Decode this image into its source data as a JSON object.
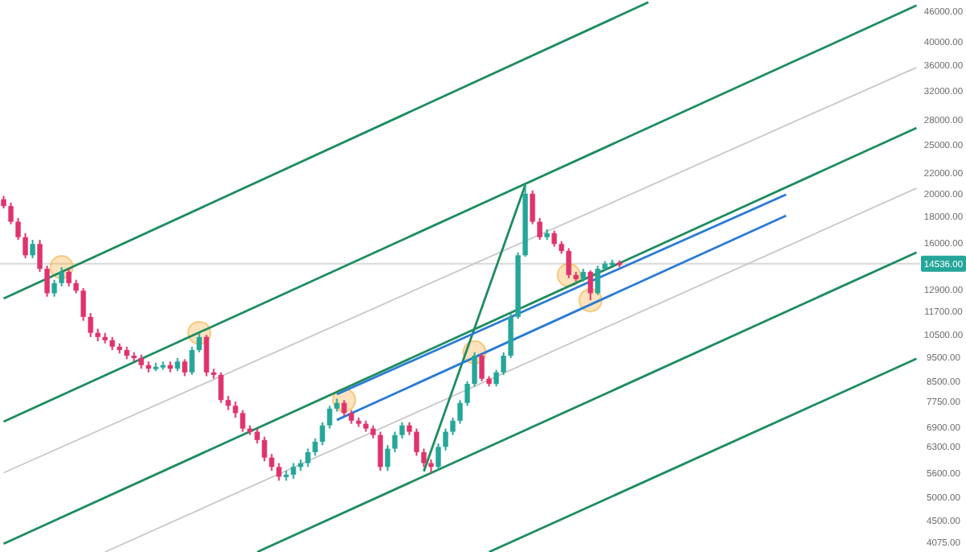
{
  "chart_data": {
    "type": "candlestick",
    "categories": [
      null,
      null,
      null,
      null,
      null,
      null,
      null,
      null,
      null,
      null,
      null,
      null,
      null,
      null,
      null,
      null,
      null,
      null,
      null,
      null,
      null,
      null,
      null,
      null,
      null,
      null,
      null,
      null,
      null,
      null,
      null,
      null,
      null,
      null,
      null,
      null,
      null,
      null,
      null,
      null,
      null,
      null,
      null,
      null,
      null,
      null,
      null,
      null,
      null,
      null,
      null,
      null,
      null,
      null,
      null,
      null,
      null,
      null,
      null,
      null,
      null,
      null,
      null,
      null,
      null,
      null,
      null,
      null,
      null,
      null,
      null,
      null,
      null,
      null,
      null,
      null,
      null,
      null,
      null,
      null,
      null,
      null,
      null,
      null,
      null,
      null,
      null,
      null,
      null,
      null,
      null,
      null,
      null,
      null,
      null,
      null,
      null,
      null,
      null,
      null,
      null,
      null,
      null,
      null,
      null,
      null,
      null,
      null,
      null,
      null,
      null,
      null,
      null,
      null,
      null,
      null,
      null,
      null,
      null,
      null,
      null,
      null,
      null,
      null,
      null,
      null,
      null
    ],
    "ohlc": [
      [
        19500,
        19800,
        18700,
        18900
      ],
      [
        18900,
        19200,
        17400,
        17600
      ],
      [
        17600,
        17900,
        16200,
        16400
      ],
      [
        16400,
        16700,
        14900,
        15100
      ],
      [
        15100,
        16200,
        14900,
        15900
      ],
      [
        15900,
        16200,
        14000,
        14200
      ],
      [
        14200,
        14400,
        12500,
        12700
      ],
      [
        12700,
        13500,
        12500,
        13300
      ],
      [
        13300,
        14300,
        13100,
        14000
      ],
      [
        14000,
        14200,
        13100,
        13300
      ],
      [
        13300,
        13500,
        12700,
        12850
      ],
      [
        12850,
        13000,
        11200,
        11400
      ],
      [
        11400,
        11600,
        10400,
        10600
      ],
      [
        10600,
        10800,
        10200,
        10400
      ],
      [
        10400,
        10600,
        10100,
        10250
      ],
      [
        10250,
        10400,
        9800,
        9950
      ],
      [
        9950,
        10100,
        9650,
        9800
      ],
      [
        9800,
        9950,
        9400,
        9550
      ],
      [
        9550,
        9700,
        9300,
        9450
      ],
      [
        9450,
        9600,
        9000,
        9150
      ],
      [
        9150,
        9300,
        8850,
        9000
      ],
      [
        9000,
        9250,
        8900,
        9080
      ],
      [
        9080,
        9300,
        8950,
        9150
      ],
      [
        9150,
        9300,
        8850,
        9000
      ],
      [
        9000,
        9450,
        8900,
        9300
      ],
      [
        9300,
        9400,
        8700,
        8850
      ],
      [
        8850,
        9950,
        8750,
        9800
      ],
      [
        9800,
        10600,
        9700,
        10400
      ],
      [
        10400,
        10500,
        8700,
        8850
      ],
      [
        8850,
        9000,
        8600,
        8750
      ],
      [
        8750,
        8850,
        7700,
        7800
      ],
      [
        7800,
        7950,
        7450,
        7600
      ],
      [
        7600,
        7750,
        7200,
        7350
      ],
      [
        7350,
        7450,
        6750,
        6850
      ],
      [
        6850,
        6950,
        6650,
        6750
      ],
      [
        6750,
        6850,
        6400,
        6500
      ],
      [
        6500,
        6600,
        5900,
        6000
      ],
      [
        6000,
        6100,
        5650,
        5750
      ],
      [
        5750,
        5850,
        5400,
        5500
      ],
      [
        5500,
        5650,
        5400,
        5550
      ],
      [
        5550,
        5850,
        5450,
        5750
      ],
      [
        5750,
        5950,
        5650,
        5850
      ],
      [
        5850,
        6250,
        5750,
        6150
      ],
      [
        6150,
        6550,
        6050,
        6450
      ],
      [
        6450,
        7050,
        6350,
        6950
      ],
      [
        6950,
        7600,
        6850,
        7500
      ],
      [
        7500,
        7850,
        7400,
        7700
      ],
      [
        7700,
        7800,
        7250,
        7350
      ],
      [
        7350,
        7450,
        7000,
        7100
      ],
      [
        7100,
        7200,
        6900,
        7000
      ],
      [
        7000,
        7100,
        6750,
        6850
      ],
      [
        6850,
        6950,
        6550,
        6650
      ],
      [
        6650,
        6750,
        5650,
        5750
      ],
      [
        5750,
        6350,
        5650,
        6250
      ],
      [
        6250,
        6750,
        6150,
        6650
      ],
      [
        6650,
        7050,
        6550,
        6950
      ],
      [
        6950,
        7050,
        6650,
        6750
      ],
      [
        6750,
        6850,
        6050,
        6150
      ],
      [
        6150,
        6250,
        5750,
        5850
      ],
      [
        5850,
        5950,
        5600,
        5750
      ],
      [
        5750,
        6400,
        5650,
        6300
      ],
      [
        6300,
        6850,
        6200,
        6750
      ],
      [
        6750,
        7200,
        6650,
        7100
      ],
      [
        7100,
        7800,
        7000,
        7700
      ],
      [
        7700,
        8500,
        7600,
        8400
      ],
      [
        8400,
        9700,
        8300,
        9550
      ],
      [
        9550,
        9650,
        8500,
        8600
      ],
      [
        8600,
        8700,
        8300,
        8400
      ],
      [
        8400,
        8950,
        8300,
        8850
      ],
      [
        8850,
        9700,
        8750,
        9550
      ],
      [
        9550,
        11600,
        9450,
        11400
      ],
      [
        11400,
        15300,
        11300,
        15100
      ],
      [
        15100,
        20800,
        15000,
        20000
      ],
      [
        20000,
        20300,
        17400,
        17600
      ],
      [
        17600,
        17900,
        16200,
        16400
      ],
      [
        16400,
        17000,
        16200,
        16700
      ],
      [
        16700,
        16900,
        15700,
        15900
      ],
      [
        15900,
        16100,
        15200,
        15400
      ],
      [
        15400,
        15600,
        13600,
        13800
      ],
      [
        13800,
        14000,
        13400,
        13550
      ],
      [
        13550,
        14200,
        13400,
        14000
      ],
      [
        14000,
        14100,
        12300,
        12700
      ],
      [
        12700,
        14400,
        12600,
        14200
      ],
      [
        14200,
        14700,
        14100,
        14536
      ],
      [
        14536,
        14800,
        14400,
        14600
      ],
      [
        14600,
        14750,
        14300,
        14450
      ],
      null,
      null,
      null,
      null,
      null,
      null,
      null,
      null,
      null,
      null,
      null,
      null,
      null,
      null,
      null,
      null,
      null,
      null,
      null,
      null,
      null,
      null,
      null,
      null,
      null,
      null,
      null,
      null,
      null,
      null,
      null,
      null,
      null,
      null,
      null,
      null,
      null,
      null,
      null,
      null,
      null
    ],
    "colors": [
      "#e0336b",
      "#e0336b",
      "#e0336b",
      "#e0336b",
      "#26a69a",
      "#e0336b",
      "#e0336b",
      "#26a69a",
      "#26a69a",
      "#e0336b",
      "#e0336b",
      "#e0336b",
      "#e0336b",
      "#e0336b",
      "#e0336b",
      "#e0336b",
      "#e0336b",
      "#e0336b",
      "#e0336b",
      "#e0336b",
      "#e0336b",
      "#26a69a",
      "#26a69a",
      "#e0336b",
      "#26a69a",
      "#e0336b",
      "#26a69a",
      "#26a69a",
      "#e0336b",
      "#e0336b",
      "#e0336b",
      "#e0336b",
      "#e0336b",
      "#e0336b",
      "#e0336b",
      "#e0336b",
      "#e0336b",
      "#e0336b",
      "#e0336b",
      "#26a69a",
      "#26a69a",
      "#26a69a",
      "#26a69a",
      "#26a69a",
      "#26a69a",
      "#26a69a",
      "#26a69a",
      "#e0336b",
      "#e0336b",
      "#e0336b",
      "#e0336b",
      "#e0336b",
      "#e0336b",
      "#26a69a",
      "#26a69a",
      "#26a69a",
      "#e0336b",
      "#e0336b",
      "#e0336b",
      "#e0336b",
      "#26a69a",
      "#26a69a",
      "#26a69a",
      "#26a69a",
      "#26a69a",
      "#26a69a",
      "#e0336b",
      "#e0336b",
      "#26a69a",
      "#26a69a",
      "#26a69a",
      "#26a69a",
      "#26a69a",
      "#e0336b",
      "#e0336b",
      "#26a69a",
      "#e0336b",
      "#e0336b",
      "#e0336b",
      "#e0336b",
      "#26a69a",
      "#e0336b",
      "#26a69a",
      "#26a69a",
      "#26a69a",
      "#e0336b",
      null,
      null,
      null,
      null,
      null,
      null,
      null,
      null,
      null,
      null,
      null,
      null,
      null,
      null,
      null,
      null,
      null,
      null,
      null,
      null,
      null,
      null,
      null,
      null,
      null,
      null,
      null,
      null,
      null,
      null,
      null,
      null,
      null,
      null,
      null,
      null,
      null,
      null,
      null,
      null,
      null
    ],
    "series": [
      {
        "type": "line",
        "color": "#1e8c5f",
        "values": [
          12400,
          null,
          null,
          null,
          null,
          null,
          null,
          null,
          null,
          null,
          null,
          null,
          null,
          null,
          null,
          null,
          null,
          null,
          null,
          null,
          null,
          null,
          null,
          null,
          null,
          null,
          null,
          null,
          null,
          null,
          null,
          null,
          null,
          null,
          null,
          null,
          null,
          null,
          null,
          null,
          null,
          null,
          null,
          null,
          null,
          null,
          null,
          null,
          null,
          null,
          null,
          null,
          null,
          null,
          null,
          null,
          null,
          null,
          null,
          null,
          null,
          null,
          null,
          null,
          null,
          null,
          null,
          null,
          null,
          null,
          null,
          null,
          null,
          null,
          null,
          null,
          null,
          null,
          null,
          null,
          null,
          null,
          null,
          null,
          null,
          null,
          null,
          null,
          null,
          47900,
          null,
          null,
          null,
          null,
          null,
          null,
          null,
          null,
          null,
          null,
          null,
          null,
          null,
          null,
          null,
          null,
          null,
          null,
          null,
          null,
          null,
          null,
          null,
          null,
          null,
          null,
          null,
          null,
          null,
          null,
          null,
          null,
          null,
          null,
          null,
          null,
          null
        ]
      },
      {
        "type": "line",
        "color": "#1e8c5f",
        "values": [
          7070,
          null,
          null,
          null,
          null,
          null,
          null,
          null,
          null,
          null,
          null,
          null,
          null,
          null,
          null,
          null,
          null,
          null,
          null,
          null,
          null,
          null,
          null,
          null,
          null,
          null,
          null,
          null,
          null,
          null,
          null,
          null,
          null,
          null,
          null,
          null,
          null,
          null,
          null,
          null,
          null,
          null,
          null,
          null,
          null,
          null,
          null,
          null,
          null,
          null,
          null,
          null,
          null,
          null,
          null,
          null,
          null,
          null,
          null,
          null,
          null,
          null,
          null,
          null,
          null,
          null,
          null,
          null,
          null,
          null,
          null,
          null,
          null,
          null,
          null,
          null,
          null,
          null,
          null,
          null,
          null,
          null,
          null,
          null,
          null,
          null,
          null,
          null,
          null,
          null,
          null,
          null,
          null,
          null,
          null,
          null,
          null,
          null,
          null,
          null,
          null,
          null,
          null,
          null,
          null,
          null,
          null,
          null,
          null,
          null,
          null,
          null,
          null,
          null,
          null,
          null,
          null,
          null,
          null,
          null,
          null,
          null,
          null,
          null,
          null,
          null,
          47200
        ]
      },
      {
        "type": "line",
        "color": "#1e8c5f",
        "values": [
          4050,
          null,
          null,
          null,
          null,
          null,
          null,
          null,
          null,
          null,
          null,
          null,
          null,
          null,
          null,
          null,
          null,
          null,
          null,
          null,
          null,
          null,
          null,
          null,
          null,
          null,
          null,
          null,
          null,
          null,
          null,
          null,
          null,
          null,
          null,
          null,
          null,
          null,
          null,
          null,
          null,
          null,
          null,
          null,
          null,
          null,
          null,
          null,
          null,
          null,
          null,
          null,
          null,
          null,
          null,
          null,
          null,
          null,
          null,
          null,
          null,
          null,
          null,
          null,
          null,
          null,
          null,
          null,
          null,
          null,
          null,
          null,
          null,
          null,
          null,
          null,
          null,
          null,
          null,
          null,
          null,
          null,
          null,
          null,
          null,
          null,
          null,
          null,
          null,
          null,
          null,
          null,
          null,
          null,
          null,
          null,
          null,
          null,
          null,
          null,
          null,
          null,
          null,
          null,
          null,
          null,
          null,
          null,
          null,
          null,
          null,
          null,
          null,
          null,
          null,
          null,
          null,
          null,
          null,
          null,
          null,
          null,
          null,
          null,
          null,
          null,
          27000
        ]
      },
      {
        "type": "line",
        "color": "#1e8c5f",
        "values": [
          null,
          null,
          null,
          null,
          null,
          null,
          null,
          null,
          null,
          null,
          null,
          null,
          null,
          null,
          null,
          null,
          null,
          null,
          null,
          null,
          null,
          null,
          null,
          null,
          null,
          null,
          null,
          null,
          null,
          null,
          null,
          null,
          null,
          null,
          null,
          3900,
          null,
          null,
          null,
          null,
          null,
          null,
          null,
          null,
          null,
          null,
          null,
          null,
          null,
          null,
          null,
          null,
          null,
          null,
          null,
          null,
          null,
          null,
          null,
          null,
          null,
          null,
          null,
          null,
          null,
          null,
          null,
          null,
          null,
          null,
          null,
          null,
          null,
          null,
          null,
          null,
          null,
          null,
          null,
          null,
          null,
          null,
          null,
          null,
          null,
          null,
          null,
          null,
          null,
          null,
          null,
          null,
          null,
          null,
          null,
          null,
          null,
          null,
          null,
          null,
          null,
          null,
          null,
          null,
          null,
          null,
          null,
          null,
          null,
          null,
          null,
          null,
          null,
          null,
          null,
          null,
          null,
          null,
          null,
          null,
          null,
          null,
          null,
          null,
          null,
          null,
          15300
        ]
      },
      {
        "type": "line",
        "color": "#1e8c5f",
        "values": [
          null,
          null,
          null,
          null,
          null,
          null,
          null,
          null,
          null,
          null,
          null,
          null,
          null,
          null,
          null,
          null,
          null,
          null,
          null,
          null,
          null,
          null,
          null,
          null,
          null,
          null,
          null,
          null,
          null,
          null,
          null,
          null,
          null,
          null,
          null,
          null,
          null,
          null,
          null,
          null,
          null,
          null,
          null,
          null,
          null,
          null,
          null,
          null,
          null,
          null,
          null,
          null,
          null,
          null,
          null,
          null,
          null,
          null,
          null,
          null,
          null,
          null,
          null,
          null,
          null,
          null,
          null,
          3900,
          null,
          null,
          null,
          null,
          null,
          null,
          null,
          null,
          null,
          null,
          null,
          null,
          null,
          null,
          null,
          null,
          null,
          null,
          null,
          null,
          null,
          null,
          null,
          null,
          null,
          null,
          null,
          null,
          null,
          null,
          null,
          null,
          null,
          null,
          null,
          null,
          null,
          null,
          null,
          null,
          null,
          null,
          null,
          null,
          null,
          null,
          null,
          null,
          null,
          null,
          null,
          null,
          null,
          null,
          null,
          null,
          null,
          null,
          9420
        ]
      },
      {
        "type": "line",
        "color": "#c8c8c8",
        "values": [
          5600,
          null,
          null,
          null,
          null,
          null,
          null,
          null,
          null,
          null,
          null,
          null,
          null,
          null,
          null,
          null,
          null,
          null,
          null,
          null,
          null,
          null,
          null,
          null,
          null,
          null,
          null,
          null,
          null,
          null,
          null,
          null,
          null,
          null,
          null,
          null,
          null,
          null,
          null,
          null,
          null,
          null,
          null,
          null,
          null,
          null,
          null,
          null,
          null,
          null,
          null,
          null,
          null,
          null,
          null,
          null,
          null,
          null,
          null,
          null,
          null,
          null,
          null,
          null,
          null,
          null,
          null,
          null,
          null,
          null,
          null,
          null,
          null,
          null,
          null,
          null,
          null,
          null,
          null,
          null,
          null,
          null,
          null,
          null,
          null,
          null,
          null,
          null,
          null,
          null,
          null,
          null,
          null,
          null,
          null,
          null,
          null,
          null,
          null,
          null,
          null,
          null,
          null,
          null,
          null,
          null,
          null,
          null,
          null,
          null,
          null,
          null,
          null,
          null,
          null,
          null,
          null,
          null,
          null,
          null,
          null,
          null,
          null,
          null,
          null,
          null,
          35580
        ]
      },
      {
        "type": "line",
        "color": "#c8c8c8",
        "values": [
          null,
          null,
          null,
          null,
          null,
          null,
          null,
          null,
          null,
          null,
          null,
          null,
          null,
          null,
          3900,
          null,
          null,
          null,
          null,
          null,
          null,
          null,
          null,
          null,
          null,
          null,
          null,
          null,
          null,
          null,
          null,
          null,
          null,
          null,
          null,
          null,
          null,
          null,
          null,
          null,
          null,
          null,
          null,
          null,
          null,
          null,
          null,
          null,
          null,
          null,
          null,
          null,
          null,
          null,
          null,
          null,
          null,
          null,
          null,
          null,
          null,
          null,
          null,
          null,
          null,
          null,
          null,
          null,
          null,
          null,
          null,
          null,
          null,
          null,
          null,
          null,
          null,
          null,
          null,
          null,
          null,
          null,
          null,
          null,
          null,
          null,
          null,
          null,
          null,
          null,
          null,
          null,
          null,
          null,
          null,
          null,
          null,
          null,
          null,
          null,
          null,
          null,
          null,
          null,
          null,
          null,
          null,
          null,
          null,
          null,
          null,
          null,
          null,
          null,
          null,
          null,
          null,
          null,
          null,
          null,
          null,
          null,
          null,
          null,
          null,
          null,
          20510
        ]
      },
      {
        "type": "line",
        "color": "#1e8c5f",
        "values": [
          null,
          null,
          null,
          null,
          null,
          null,
          null,
          null,
          null,
          null,
          null,
          null,
          null,
          null,
          null,
          null,
          null,
          null,
          null,
          null,
          null,
          null,
          null,
          null,
          null,
          null,
          null,
          null,
          null,
          null,
          null,
          null,
          null,
          null,
          null,
          null,
          null,
          null,
          null,
          null,
          null,
          null,
          null,
          null,
          null,
          null,
          null,
          null,
          null,
          null,
          null,
          null,
          null,
          null,
          null,
          null,
          null,
          null,
          5636,
          null,
          null,
          null,
          null,
          null,
          null,
          null,
          null,
          null,
          null,
          null,
          null,
          null,
          20810,
          null,
          null,
          null,
          null,
          null,
          null,
          null,
          null,
          null,
          null,
          null,
          null,
          null,
          null,
          null,
          null,
          null,
          null,
          null,
          null,
          null,
          null,
          null,
          null,
          null,
          null,
          null,
          null,
          null,
          null,
          null,
          null,
          null,
          null,
          null,
          null,
          null,
          null,
          null,
          null,
          null,
          null,
          null,
          null,
          null,
          null,
          null,
          null,
          null,
          null,
          null,
          null,
          null,
          null
        ]
      },
      {
        "type": "line",
        "color": "#2a7bd4",
        "values": [
          null,
          null,
          null,
          null,
          null,
          null,
          null,
          null,
          null,
          null,
          null,
          null,
          null,
          null,
          null,
          null,
          null,
          null,
          null,
          null,
          null,
          null,
          null,
          null,
          null,
          null,
          null,
          null,
          null,
          null,
          null,
          null,
          null,
          null,
          null,
          null,
          null,
          null,
          null,
          null,
          null,
          null,
          null,
          null,
          null,
          null,
          8010,
          null,
          null,
          null,
          null,
          null,
          null,
          null,
          null,
          null,
          null,
          null,
          null,
          null,
          null,
          null,
          null,
          null,
          null,
          null,
          null,
          null,
          null,
          null,
          null,
          null,
          null,
          null,
          null,
          null,
          null,
          null,
          null,
          null,
          null,
          null,
          null,
          null,
          null,
          null,
          null,
          null,
          null,
          null,
          null,
          null,
          null,
          null,
          null,
          null,
          null,
          null,
          null,
          null,
          null,
          null,
          null,
          null,
          null,
          null,
          null,
          null,
          19920,
          null,
          null,
          null,
          null,
          null,
          null,
          null,
          null,
          null,
          null,
          null,
          null,
          null,
          null,
          null,
          null,
          null,
          null
        ]
      },
      {
        "type": "line",
        "color": "#2a7bd4",
        "values": [
          null,
          null,
          null,
          null,
          null,
          null,
          null,
          null,
          null,
          null,
          null,
          null,
          null,
          null,
          null,
          null,
          null,
          null,
          null,
          null,
          null,
          null,
          null,
          null,
          null,
          null,
          null,
          null,
          null,
          null,
          null,
          null,
          null,
          null,
          null,
          null,
          null,
          null,
          null,
          null,
          null,
          null,
          null,
          null,
          null,
          null,
          7125,
          null,
          null,
          null,
          null,
          null,
          null,
          null,
          null,
          null,
          null,
          null,
          null,
          null,
          null,
          null,
          null,
          null,
          null,
          null,
          null,
          null,
          null,
          null,
          null,
          null,
          null,
          null,
          null,
          null,
          null,
          null,
          null,
          null,
          null,
          null,
          null,
          null,
          null,
          null,
          null,
          null,
          null,
          null,
          null,
          null,
          null,
          null,
          null,
          null,
          null,
          null,
          null,
          null,
          null,
          null,
          null,
          null,
          null,
          null,
          null,
          null,
          18100,
          null,
          null,
          null,
          null,
          null,
          null,
          null,
          null,
          null,
          null,
          null,
          null,
          null,
          null,
          null,
          null,
          null,
          null
        ]
      }
    ],
    "ylim": [
      3900,
      48400
    ],
    "log": true,
    "yticks": [
      {
        "value": 46000,
        "label": "46000.00"
      },
      {
        "value": 40000,
        "label": "40000.00"
      },
      {
        "value": 36000,
        "label": "36000.00"
      },
      {
        "value": 32000,
        "label": "32000.00"
      },
      {
        "value": 28000,
        "label": "28000.00"
      },
      {
        "value": 25000,
        "label": "25000.00"
      },
      {
        "value": 22000,
        "label": "22000.00"
      },
      {
        "value": 20000,
        "label": "20000.00"
      },
      {
        "value": 18000,
        "label": "18000.00"
      },
      {
        "value": 16000,
        "label": "16000.00"
      },
      {
        "value": 12900,
        "label": "12900.00"
      },
      {
        "value": 11700,
        "label": "11700.00"
      },
      {
        "value": 10500,
        "label": "10500.00"
      },
      {
        "value": 9500,
        "label": "9500.00"
      },
      {
        "value": 8500,
        "label": "8500.00"
      },
      {
        "value": 7750,
        "label": "7750.00"
      },
      {
        "value": 6900,
        "label": "6900.00"
      },
      {
        "value": 6300,
        "label": "6300.00"
      },
      {
        "value": 5600,
        "label": "5600.00"
      },
      {
        "value": 5000,
        "label": "5000.00"
      },
      {
        "value": 4500,
        "label": "4500.00"
      },
      {
        "value": 4075,
        "label": "4075.00"
      }
    ],
    "tick_labels": "y",
    "ref_lines": [
      {
        "axis": "y",
        "value": 14536,
        "label": "14536.00",
        "color": "#d8d8d8"
      }
    ]
  }
}
